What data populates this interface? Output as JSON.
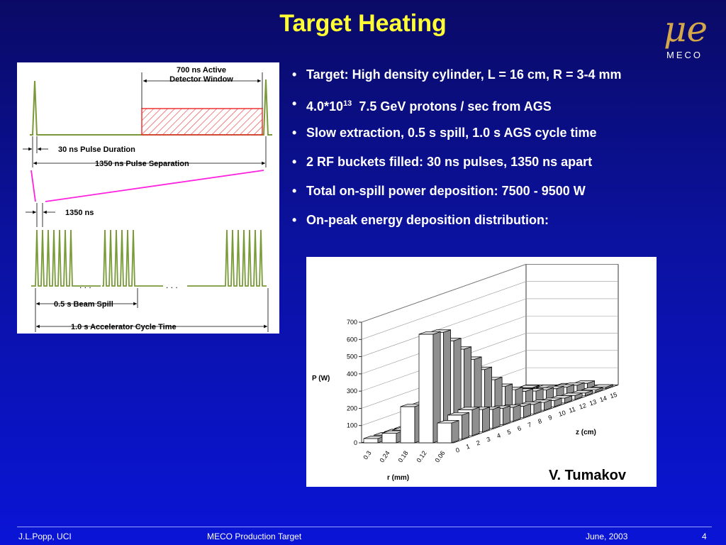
{
  "title": "Target Heating",
  "logo": {
    "text": "MECO",
    "glyph": "μe"
  },
  "bullets": [
    {
      "text": "Target: High density cylinder, L = 16 cm, R = 3-4 mm"
    },
    {
      "pre": "4.0*10",
      "sup": "13",
      "post": "  7.5 GeV protons / sec from AGS"
    },
    {
      "text": "Slow extraction, 0.5 s spill, 1.0 s AGS cycle time"
    },
    {
      "text": "2 RF buckets filled: 30 ns pulses, 1350 ns apart"
    },
    {
      "text": "Total on-spill power deposition: 7500 - 9500 W"
    },
    {
      "text": "On-peak energy deposition distribution:"
    }
  ],
  "timing_diagram": {
    "window_label_1": "700 ns Active",
    "window_label_2": "Detector Window",
    "pulse_duration": "30 ns Pulse Duration",
    "pulse_separation": "1350 ns Pulse Separation",
    "pulse_spacing": "1350 ns",
    "beam_spill": "0.5 s Beam Spill",
    "cycle_time": "1.0 s Accelerator Cycle Time",
    "ellipsis": ". . ."
  },
  "chart_data": {
    "type": "bar",
    "ylabel": "P (W)",
    "xlabel": "r (mm)",
    "zlabel": "z (cm)",
    "ylim": [
      0,
      700
    ],
    "yticks": [
      0,
      100,
      200,
      300,
      400,
      500,
      600,
      700
    ],
    "r_categories": [
      "0.3",
      "0.24",
      "0.18",
      "0.12",
      "0.06"
    ],
    "z_categories": [
      "0",
      "1",
      "2",
      "3",
      "4",
      "5",
      "6",
      "7",
      "8",
      "9",
      "10",
      "11",
      "12",
      "13",
      "14",
      "15"
    ],
    "series": [
      {
        "name": "0.06",
        "values": [
          115,
          140,
          150,
          130,
          110,
          95,
          80,
          65,
          55,
          45,
          35,
          28,
          22,
          16,
          12,
          8
        ]
      },
      {
        "name": "0.12",
        "values": [
          630,
          620,
          550,
          480,
          400,
          320,
          240,
          180,
          140,
          110,
          90,
          75,
          62,
          50,
          40,
          30
        ]
      },
      {
        "name": "0.18",
        "values": [
          210,
          200,
          180,
          160,
          140,
          120,
          100,
          85,
          70,
          58,
          48,
          40,
          32,
          25,
          20,
          15
        ]
      },
      {
        "name": "0.24",
        "values": [
          55,
          52,
          48,
          44,
          40,
          36,
          32,
          28,
          24,
          21,
          18,
          15,
          12,
          10,
          8,
          6
        ]
      },
      {
        "name": "0.3",
        "values": [
          25,
          24,
          22,
          20,
          18,
          16,
          14,
          12,
          11,
          10,
          9,
          8,
          7,
          6,
          5,
          4
        ]
      }
    ]
  },
  "credit": "V. Tumakov",
  "footer": {
    "author": "J.L.Popp, UCI",
    "center": "MECO Production Target",
    "date": "June, 2003",
    "page": "4"
  }
}
